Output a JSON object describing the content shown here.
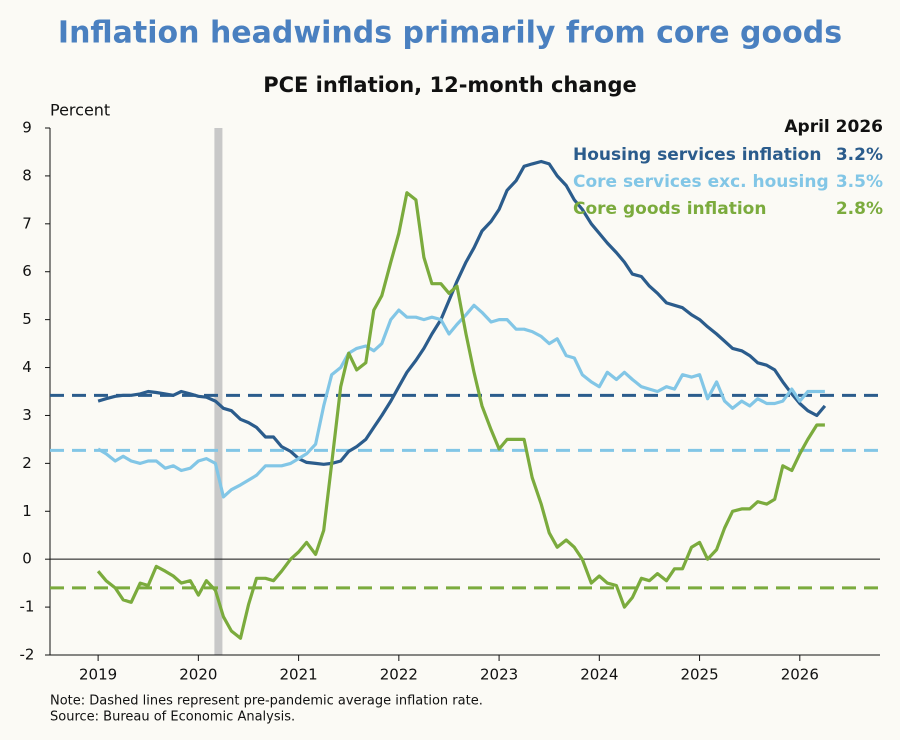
{
  "chart_data": {
    "type": "line",
    "title": "Inflation headwinds primarily from core goods",
    "subtitle": "PCE inflation, 12-month change",
    "y_label": "Percent",
    "legend_header": "April 2026",
    "note": "Note: Dashed lines represent pre-pandemic average inflation rate.",
    "source": "Source: Bureau of Economic Analysis.",
    "xlim": [
      2018.52,
      2026.8
    ],
    "xticks": [
      2019,
      2020,
      2021,
      2022,
      2023,
      2024,
      2025,
      2026
    ],
    "ylim": [
      -2,
      9
    ],
    "yticks": [
      -2,
      -1,
      0,
      1,
      2,
      3,
      4,
      5,
      6,
      7,
      8,
      9
    ],
    "shaded_range": [
      2020.16,
      2020.24
    ],
    "x": [
      2019,
      2019.08,
      2019.17,
      2019.25,
      2019.33,
      2019.42,
      2019.5,
      2019.58,
      2019.67,
      2019.75,
      2019.83,
      2019.92,
      2020,
      2020.08,
      2020.17,
      2020.25,
      2020.33,
      2020.42,
      2020.5,
      2020.58,
      2020.67,
      2020.75,
      2020.83,
      2020.92,
      2021,
      2021.08,
      2021.17,
      2021.25,
      2021.33,
      2021.42,
      2021.5,
      2021.58,
      2021.67,
      2021.75,
      2021.83,
      2021.92,
      2022,
      2022.08,
      2022.17,
      2022.25,
      2022.33,
      2022.42,
      2022.5,
      2022.58,
      2022.67,
      2022.75,
      2022.83,
      2022.92,
      2023,
      2023.08,
      2023.17,
      2023.25,
      2023.33,
      2023.42,
      2023.5,
      2023.58,
      2023.67,
      2023.75,
      2023.83,
      2023.92,
      2024,
      2024.08,
      2024.17,
      2024.25,
      2024.33,
      2024.42,
      2024.5,
      2024.58,
      2024.67,
      2024.75,
      2024.83,
      2024.92,
      2025,
      2025.08,
      2025.17,
      2025.25,
      2025.33,
      2025.42,
      2025.5,
      2025.58,
      2025.67,
      2025.75,
      2025.83,
      2025.92,
      2026,
      2026.08,
      2026.17,
      2026.25
    ],
    "series": [
      {
        "name": "Housing services inflation",
        "color": "#2b5c8c",
        "last_label": "3.2%",
        "reference": 3.42,
        "values": [
          3.3,
          3.35,
          3.4,
          3.42,
          3.42,
          3.45,
          3.5,
          3.48,
          3.45,
          3.42,
          3.5,
          3.45,
          3.4,
          3.38,
          3.3,
          3.15,
          3.1,
          2.92,
          2.85,
          2.75,
          2.55,
          2.55,
          2.35,
          2.25,
          2.1,
          2.02,
          2.0,
          1.98,
          2.0,
          2.05,
          2.25,
          2.35,
          2.5,
          2.75,
          3.0,
          3.3,
          3.6,
          3.9,
          4.15,
          4.4,
          4.7,
          5.0,
          5.4,
          5.8,
          6.2,
          6.5,
          6.85,
          7.05,
          7.3,
          7.7,
          7.9,
          8.2,
          8.25,
          8.3,
          8.25,
          8.0,
          7.8,
          7.5,
          7.3,
          7.0,
          6.8,
          6.6,
          6.4,
          6.2,
          5.95,
          5.9,
          5.7,
          5.55,
          5.35,
          5.3,
          5.25,
          5.1,
          5.0,
          4.85,
          4.7,
          4.55,
          4.4,
          4.35,
          4.25,
          4.1,
          4.05,
          3.95,
          3.7,
          3.45,
          3.25,
          3.1,
          3.0,
          3.2
        ]
      },
      {
        "name": "Core services exc. housing",
        "color": "#82c6e6",
        "last_label": "3.5%",
        "reference": 2.27,
        "values": [
          2.3,
          2.2,
          2.05,
          2.15,
          2.05,
          2.0,
          2.05,
          2.05,
          1.9,
          1.95,
          1.85,
          1.9,
          2.05,
          2.1,
          2.0,
          1.3,
          1.45,
          1.55,
          1.65,
          1.75,
          1.95,
          1.95,
          1.95,
          2.0,
          2.1,
          2.2,
          2.4,
          3.2,
          3.85,
          4.0,
          4.3,
          4.4,
          4.45,
          4.35,
          4.5,
          5.0,
          5.2,
          5.05,
          5.05,
          5.0,
          5.05,
          5.0,
          4.7,
          4.9,
          5.1,
          5.3,
          5.15,
          4.95,
          5.0,
          5.0,
          4.8,
          4.8,
          4.75,
          4.65,
          4.5,
          4.6,
          4.25,
          4.2,
          3.85,
          3.7,
          3.6,
          3.9,
          3.75,
          3.9,
          3.75,
          3.6,
          3.55,
          3.5,
          3.6,
          3.55,
          3.85,
          3.8,
          3.85,
          3.35,
          3.7,
          3.3,
          3.15,
          3.3,
          3.2,
          3.35,
          3.25,
          3.25,
          3.3,
          3.55,
          3.3,
          3.5,
          3.5,
          3.5
        ]
      },
      {
        "name": "Core goods inflation",
        "color": "#7bab3d",
        "last_label": "2.8%",
        "reference": -0.6,
        "values": [
          -0.25,
          -0.45,
          -0.6,
          -0.85,
          -0.9,
          -0.5,
          -0.55,
          -0.15,
          -0.25,
          -0.35,
          -0.5,
          -0.45,
          -0.75,
          -0.45,
          -0.65,
          -1.2,
          -1.5,
          -1.65,
          -0.95,
          -0.4,
          -0.4,
          -0.45,
          -0.25,
          0.0,
          0.15,
          0.35,
          0.1,
          0.6,
          2.0,
          3.6,
          4.3,
          3.95,
          4.1,
          5.2,
          5.5,
          6.2,
          6.8,
          7.65,
          7.5,
          6.3,
          5.75,
          5.75,
          5.55,
          5.7,
          4.7,
          3.9,
          3.2,
          2.7,
          2.3,
          2.5,
          2.5,
          2.5,
          1.7,
          1.15,
          0.55,
          0.25,
          0.4,
          0.25,
          0.0,
          -0.5,
          -0.35,
          -0.5,
          -0.55,
          -1.0,
          -0.8,
          -0.4,
          -0.45,
          -0.3,
          -0.45,
          -0.2,
          -0.2,
          0.25,
          0.35,
          0.0,
          0.2,
          0.65,
          1.0,
          1.05,
          1.05,
          1.2,
          1.15,
          1.25,
          1.95,
          1.85,
          2.2,
          2.5,
          2.8,
          2.8
        ]
      }
    ]
  }
}
